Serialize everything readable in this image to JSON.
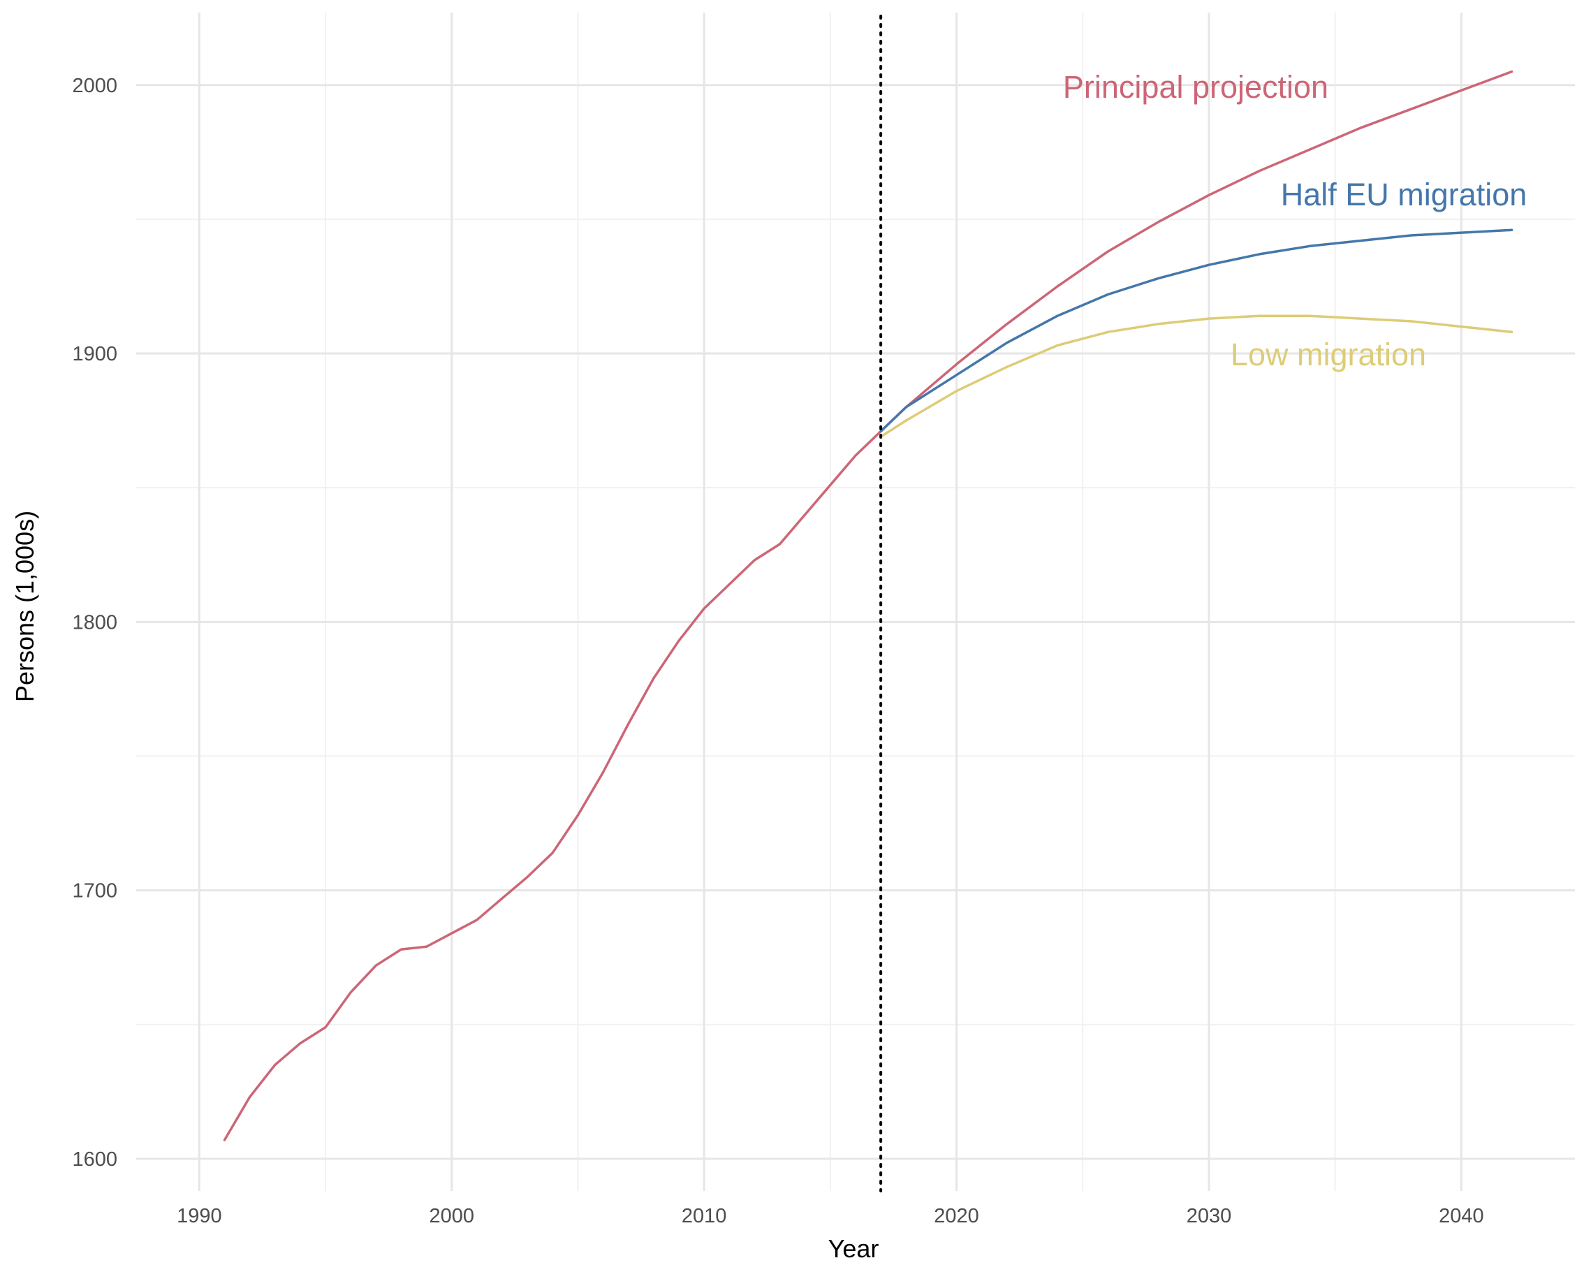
{
  "chart_data": {
    "type": "line",
    "xlabel": "Year",
    "ylabel": "Persons (1,000s)",
    "xlim": [
      1987.5,
      2044.5
    ],
    "ylim": [
      1588,
      2027
    ],
    "x_ticks": [
      1990,
      2000,
      2010,
      2020,
      2030,
      2040
    ],
    "y_ticks": [
      1600,
      1700,
      1800,
      1900,
      2000
    ],
    "grid": true,
    "vline": {
      "x": 2017,
      "style": "dotted",
      "color": "#000000"
    },
    "series": [
      {
        "name": "Principal projection",
        "color": "#cc6677",
        "x": [
          1991,
          1992,
          1993,
          1994,
          1995,
          1996,
          1997,
          1998,
          1999,
          2000,
          2001,
          2002,
          2003,
          2004,
          2005,
          2006,
          2007,
          2008,
          2009,
          2010,
          2011,
          2012,
          2013,
          2014,
          2015,
          2016,
          2017,
          2018,
          2020,
          2022,
          2024,
          2026,
          2028,
          2030,
          2032,
          2034,
          2036,
          2038,
          2040,
          2042
        ],
        "values": [
          1607,
          1623,
          1635,
          1643,
          1649,
          1662,
          1672,
          1678,
          1679,
          1684,
          1689,
          1697,
          1705,
          1714,
          1728,
          1744,
          1762,
          1779,
          1793,
          1805,
          1814,
          1823,
          1829,
          1840,
          1851,
          1862,
          1871,
          1880,
          1896,
          1911,
          1925,
          1938,
          1949,
          1959,
          1968,
          1976,
          1984,
          1991,
          1998,
          2005
        ]
      },
      {
        "name": "Half EU migration",
        "color": "#4477aa",
        "x": [
          2017,
          2018,
          2020,
          2022,
          2024,
          2026,
          2028,
          2030,
          2032,
          2034,
          2036,
          2038,
          2040,
          2042
        ],
        "values": [
          1871,
          1880,
          1892,
          1904,
          1914,
          1922,
          1928,
          1933,
          1937,
          1940,
          1942,
          1944,
          1945,
          1946
        ]
      },
      {
        "name": "Low migration",
        "color": "#ddcc77",
        "x": [
          2017,
          2018,
          2020,
          2022,
          2024,
          2026,
          2028,
          2030,
          2032,
          2034,
          2036,
          2038,
          2040,
          2042
        ],
        "values": [
          1869,
          1875,
          1886,
          1895,
          1903,
          1908,
          1911,
          1913,
          1914,
          1914,
          1913,
          1912,
          1910,
          1908
        ]
      }
    ]
  }
}
